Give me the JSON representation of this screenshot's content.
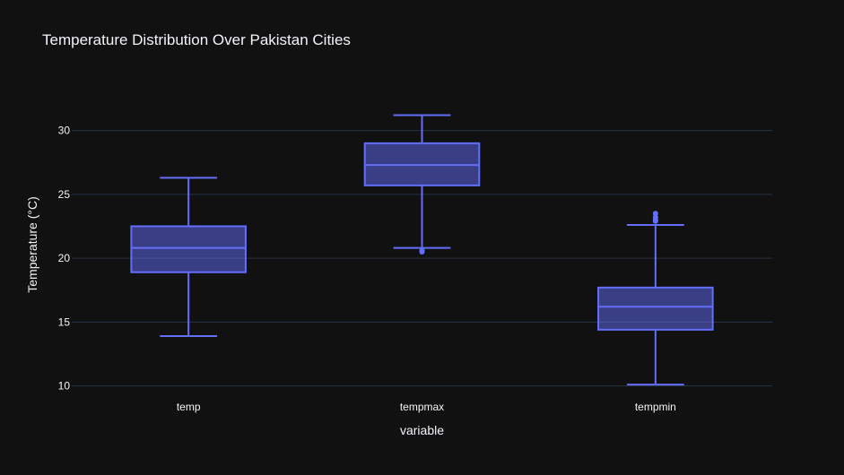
{
  "chart_data": {
    "type": "box",
    "title": "Temperature Distribution Over Pakistan Cities",
    "xlabel": "variable",
    "ylabel": "Temperature (°C)",
    "categories": [
      "temp",
      "tempmax",
      "tempmin"
    ],
    "ylim": [
      9.9,
      33.2
    ],
    "yticks": [
      10,
      15,
      20,
      25,
      30
    ],
    "ytick_labels": [
      "10",
      "15",
      "20",
      "25",
      "30"
    ],
    "grid": true,
    "boxes": [
      {
        "name": "temp",
        "lowerfence": 13.9,
        "q1": 18.9,
        "median": 20.8,
        "q3": 22.5,
        "upperfence": 26.3,
        "outliers": []
      },
      {
        "name": "tempmax",
        "lowerfence": 20.8,
        "q1": 25.7,
        "median": 27.3,
        "q3": 29.0,
        "upperfence": 31.2,
        "outliers": [
          20.6,
          20.5
        ]
      },
      {
        "name": "tempmin",
        "lowerfence": 10.1,
        "q1": 14.4,
        "median": 16.2,
        "q3": 17.7,
        "upperfence": 22.6,
        "outliers": [
          22.9,
          23.0,
          23.2,
          23.5
        ]
      }
    ],
    "colors": {
      "background": "#111111",
      "grid": "#283442",
      "box_line": "#636efa",
      "box_fill": "rgba(99,110,250,0.5)",
      "text": "#f2f5fa"
    }
  }
}
